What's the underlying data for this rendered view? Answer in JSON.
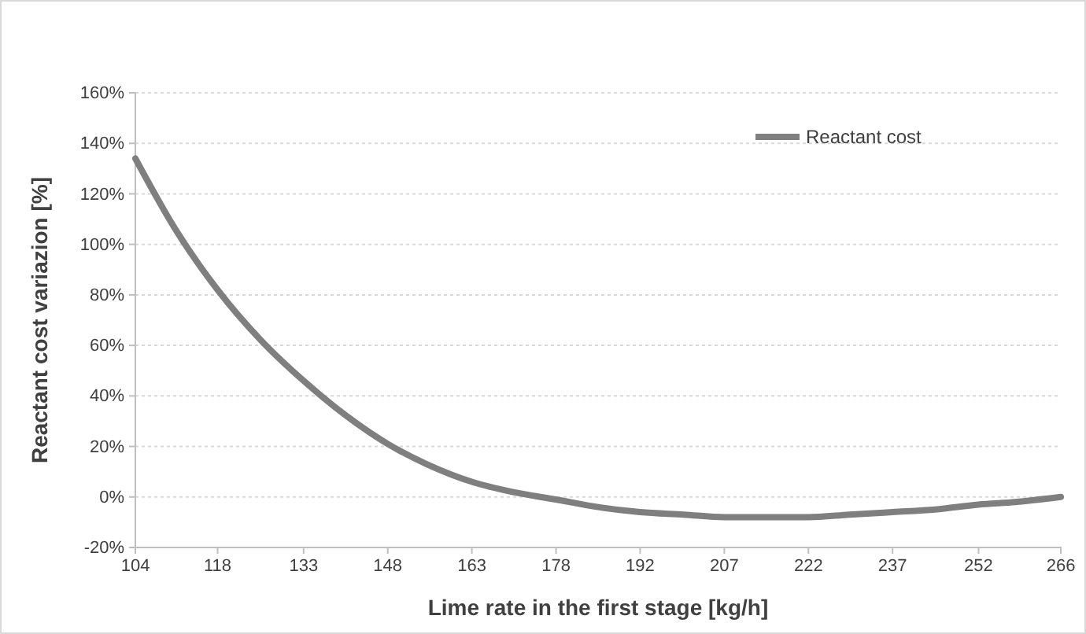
{
  "chart_data": {
    "type": "line",
    "xlabel": "Lime rate in the first stage [kg/h]",
    "ylabel": "Reactant cost variazion [%]",
    "xlim": [
      104,
      266
    ],
    "xticks": [
      104,
      {
        "value": 118.4,
        "label": "118"
      },
      {
        "value": 133.45,
        "label": "133"
      },
      {
        "value": 148.18,
        "label": "148"
      },
      {
        "value": 162.91,
        "label": "163"
      },
      {
        "value": 177.64,
        "label": "178"
      },
      {
        "value": 192.36,
        "label": "192"
      },
      {
        "value": 207.09,
        "label": "207"
      },
      {
        "value": 221.82,
        "label": "222"
      },
      {
        "value": 236.55,
        "label": "237"
      },
      {
        "value": 251.6,
        "label": "252"
      },
      266
    ],
    "ylim": [
      -20,
      160
    ],
    "yticks": [
      {
        "value": -20,
        "label": "-20%"
      },
      {
        "value": 0,
        "label": "0%"
      },
      {
        "value": 20,
        "label": "20%"
      },
      {
        "value": 40,
        "label": "40%"
      },
      {
        "value": 60,
        "label": "60%"
      },
      {
        "value": 80,
        "label": "80%"
      },
      {
        "value": 100,
        "label": "100%"
      },
      {
        "value": 120,
        "label": "120%"
      },
      {
        "value": 140,
        "label": "140%"
      },
      {
        "value": 160,
        "label": "160%"
      }
    ],
    "grid": "y",
    "legend": "top right",
    "line_style": "solid",
    "marker": "none",
    "series": [
      {
        "name": "Reactant cost",
        "color": "#7f7f7f",
        "x": [
          104,
          111,
          118.4,
          126,
          133.45,
          141,
          148.18,
          155,
          162.91,
          170,
          177.64,
          185,
          192.36,
          200,
          207.09,
          214,
          221.82,
          229,
          236.55,
          244,
          251.6,
          258,
          266
        ],
        "values": [
          134,
          106,
          82,
          62,
          46,
          32,
          21,
          13,
          6,
          2,
          -1,
          -4,
          -6,
          -7,
          -8,
          -8,
          -8,
          -7,
          -6,
          -5,
          -3,
          -2,
          0
        ]
      }
    ]
  }
}
